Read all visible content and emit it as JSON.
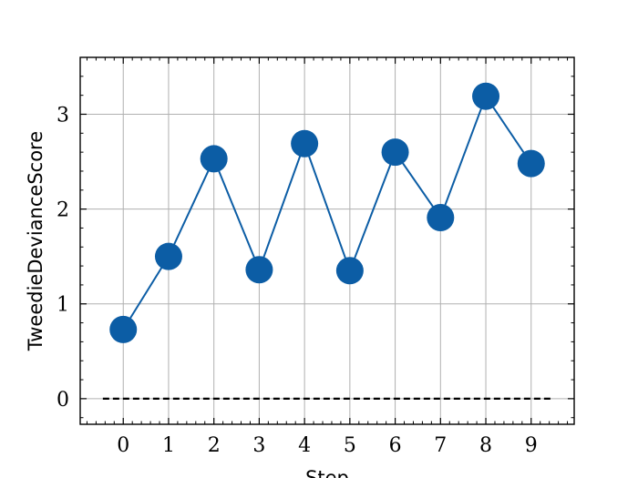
{
  "chart_data": {
    "type": "line",
    "title": "",
    "xlabel": "Step",
    "ylabel": "TweedieDevianceScore",
    "x": [
      0,
      1,
      2,
      3,
      4,
      5,
      6,
      7,
      8,
      9
    ],
    "series": [
      {
        "values": [
          0.73,
          1.5,
          2.53,
          1.36,
          2.69,
          1.35,
          2.6,
          1.91,
          3.19,
          2.48
        ],
        "color": "#0C5DA5",
        "marker": "circle"
      }
    ],
    "reference_line": {
      "y": 0,
      "style": "dashed",
      "color": "#000000"
    },
    "xlim": [
      -0.95,
      9.95
    ],
    "ylim": [
      -0.27,
      3.6
    ],
    "xticks": [
      0,
      1,
      2,
      3,
      4,
      5,
      6,
      7,
      8,
      9
    ],
    "yticks": [
      0,
      1,
      2,
      3
    ],
    "grid": true
  }
}
